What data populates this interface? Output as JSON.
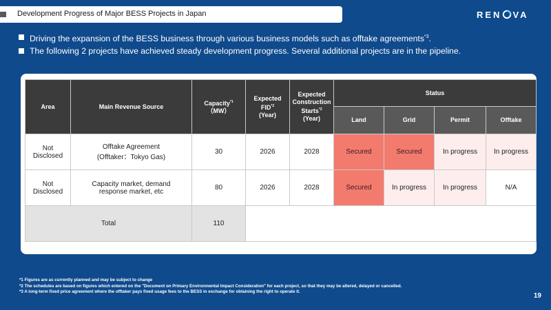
{
  "header": {
    "title": "Development Progress of Major BESS Projects in Japan",
    "logo_text_left": "REN",
    "logo_text_right": "VA"
  },
  "bullets": [
    {
      "text": "Driving the expansion of the BESS business through various business models such as offtake agreements",
      "sup": "*3",
      "tail": "."
    },
    {
      "text": "The following 2 projects have achieved steady development progress. Several additional projects are in the pipeline.",
      "sup": "",
      "tail": ""
    }
  ],
  "table": {
    "headers": {
      "area": "Area",
      "revenue": "Main Revenue Source",
      "capacity": "Capacity",
      "capacity_sup": "*1",
      "capacity_unit": "（MW）",
      "fid_line1": "Expected",
      "fid_line2": "FID",
      "fid_sup": "*2",
      "fid_line3": "(Year)",
      "cs_line1": "Expected",
      "cs_line2": "Construction",
      "cs_line3": "Starts",
      "cs_sup": "*2",
      "cs_line4": "(Year)",
      "status": "Status",
      "land": "Land",
      "grid": "Grid",
      "permit": "Permit",
      "offtake": "Offtake"
    },
    "rows": [
      {
        "area_line1": "Not",
        "area_line2": "Disclosed",
        "revenue_line1": "Offtake Agreement",
        "revenue_line2": "(Offtaker：Tokyo Gas)",
        "capacity": "30",
        "fid": "2026",
        "construction": "2028",
        "land": "Secured",
        "grid": "Secured",
        "permit": "In progress",
        "offtake": "In progress"
      },
      {
        "area_line1": "Not",
        "area_line2": "Disclosed",
        "revenue_line1": "Capacity market, demand",
        "revenue_line2": "response market, etc",
        "capacity": "80",
        "fid": "2026",
        "construction": "2028",
        "land": "Secured",
        "grid": "In progress",
        "permit": "In progress",
        "offtake": "N/A"
      }
    ],
    "total_label": "Total",
    "total_capacity": "110"
  },
  "footnotes": [
    "*1 Figures are as currently planned and may be subject to change",
    "*2 The schedules are based on figures which entered on the \"Document on Primary Environmental Impact Consideration\" for each project, so that they may be altered, delayed or cancelled.",
    "*3 A long-term fixed price agreement where the offtaker pays fixed usage fees to the BESS in exchange for obtaining the right to operate it."
  ],
  "page_number": "19",
  "colors": {
    "background": "#0f4a8c",
    "secured": "#f27b6e",
    "in_progress": "#fdeded",
    "header_dark": "#3b3b3b",
    "header_sub": "#595959"
  }
}
